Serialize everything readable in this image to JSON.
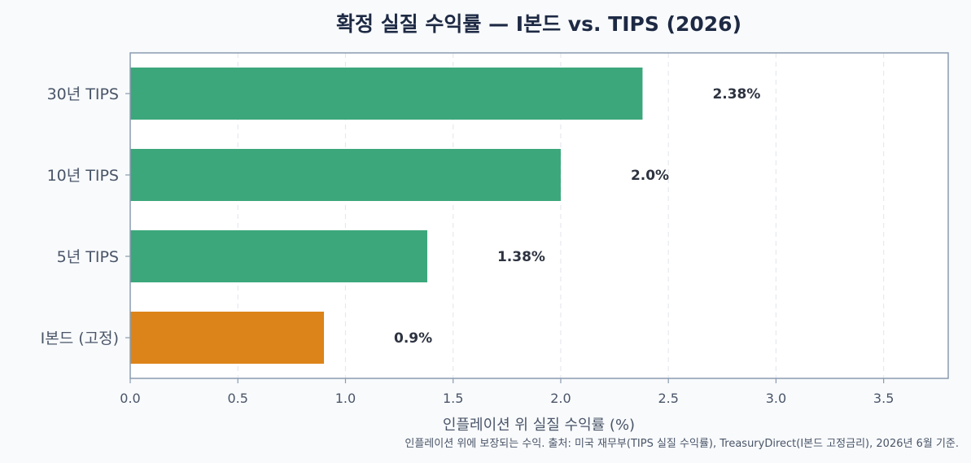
{
  "chart_data": {
    "type": "bar",
    "orientation": "horizontal",
    "title": "확정 실질 수익률 — I본드 vs. TIPS (2026)",
    "xlabel": "인플레이션 위 실질 수익률 (%)",
    "ylabel": "",
    "categories": [
      "30년 TIPS",
      "10년 TIPS",
      "5년 TIPS",
      "I본드 (고정)"
    ],
    "values": [
      2.38,
      2.0,
      1.38,
      0.9
    ],
    "value_labels": [
      "2.38%",
      "2.0%",
      "1.38%",
      "0.9%"
    ],
    "bar_colors": [
      "#3ca77b",
      "#3ca77b",
      "#3ca77b",
      "#dc8419"
    ],
    "xlim": [
      0,
      3.8
    ],
    "xticks": [
      0.0,
      0.5,
      1.0,
      1.5,
      2.0,
      2.5,
      3.0,
      3.5
    ],
    "xtick_labels": [
      "0.0",
      "0.5",
      "1.0",
      "1.5",
      "2.0",
      "2.5",
      "3.0",
      "3.5"
    ],
    "grid": "vertical-dashed",
    "footnote": "인플레이션 위에 보장되는 수익. 출처: 미국 재무부(TIPS 실질 수익률), TreasuryDirect(I본드 고정금리), 2026년 6월 기준."
  },
  "colors": {
    "background": "#f8fafc",
    "plot_background": "#ffffff",
    "axis": "#8a9bb0",
    "grid": "#e5e9ef"
  }
}
